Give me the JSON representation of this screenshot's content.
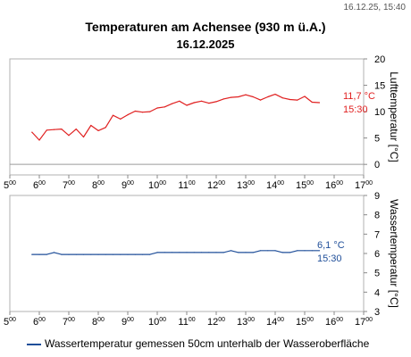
{
  "header": {
    "timestamp": "16.12.25, 15:40",
    "title": "Temperaturen am Achensee (930 m ü.A.)",
    "date": "16.12.2025"
  },
  "legend": {
    "label": "Wassertemperatur gemessen 50cm unterhalb der Wasseroberfläche"
  },
  "chart_data": [
    {
      "type": "line",
      "name": "air",
      "ylabel": "Lufttemperatur [°C]",
      "xlim": [
        5,
        17
      ],
      "ylim": [
        -2,
        20
      ],
      "yticks": [
        0,
        5,
        10,
        15,
        20
      ],
      "xticks": [
        5,
        6,
        7,
        8,
        9,
        10,
        11,
        12,
        13,
        14,
        15,
        16,
        17
      ],
      "xtick_labels": [
        "5",
        "6",
        "7",
        "8",
        "9",
        "10",
        "11",
        "12",
        "13",
        "14",
        "15",
        "16",
        "17"
      ],
      "xtick_suffix": "00",
      "grid": false,
      "zero_line": true,
      "color": "#e02020",
      "series": [
        {
          "x": [
            5.75,
            6.0,
            6.25,
            6.5,
            6.75,
            7.0,
            7.25,
            7.5,
            7.75,
            8.0,
            8.25,
            8.5,
            8.75,
            9.0,
            9.25,
            9.5,
            9.75,
            10.0,
            10.25,
            10.5,
            10.75,
            11.0,
            11.25,
            11.5,
            11.75,
            12.0,
            12.25,
            12.5,
            12.75,
            13.0,
            13.25,
            13.5,
            13.75,
            14.0,
            14.25,
            14.5,
            14.75,
            15.0,
            15.25,
            15.5
          ],
          "values": [
            6.1,
            4.6,
            6.5,
            6.6,
            6.7,
            5.5,
            6.7,
            5.2,
            7.4,
            6.4,
            7.0,
            9.3,
            8.6,
            9.4,
            10.1,
            9.9,
            10.0,
            10.7,
            10.9,
            11.5,
            12.0,
            11.2,
            11.7,
            12.0,
            11.6,
            11.9,
            12.4,
            12.7,
            12.8,
            13.2,
            12.8,
            12.2,
            12.8,
            13.3,
            12.6,
            12.3,
            12.2,
            12.9,
            11.8,
            11.7
          ]
        }
      ],
      "annotation": {
        "value": "11,7 °C",
        "time": "15:30"
      }
    },
    {
      "type": "line",
      "name": "water",
      "ylabel": "Wassertemperatur [°C]",
      "xlim": [
        5,
        17
      ],
      "ylim": [
        3,
        9
      ],
      "yticks": [
        3,
        4,
        5,
        6,
        7,
        8,
        9
      ],
      "xticks": [
        5,
        6,
        7,
        8,
        9,
        10,
        11,
        12,
        13,
        14,
        15,
        16,
        17
      ],
      "xtick_labels": [
        "5",
        "6",
        "7",
        "8",
        "9",
        "10",
        "11",
        "12",
        "13",
        "14",
        "15",
        "16",
        "17"
      ],
      "xtick_suffix": "00",
      "grid": false,
      "color": "#1f4e99",
      "series": [
        {
          "name": "Wassertemperatur gemessen 50cm unterhalb der Wasseroberfläche",
          "x": [
            5.75,
            6.0,
            6.25,
            6.5,
            6.75,
            7.0,
            7.25,
            7.5,
            7.75,
            8.0,
            8.25,
            8.5,
            8.75,
            9.0,
            9.25,
            9.5,
            9.75,
            10.0,
            10.25,
            10.5,
            10.75,
            11.0,
            11.25,
            11.5,
            11.75,
            12.0,
            12.25,
            12.5,
            12.75,
            13.0,
            13.25,
            13.5,
            13.75,
            14.0,
            14.25,
            14.5,
            14.75,
            15.0,
            15.25,
            15.5
          ],
          "values": [
            5.95,
            5.95,
            5.95,
            6.05,
            5.95,
            5.95,
            5.95,
            5.95,
            5.95,
            5.95,
            5.95,
            5.95,
            5.95,
            5.95,
            5.95,
            5.95,
            5.95,
            6.05,
            6.05,
            6.05,
            6.05,
            6.05,
            6.05,
            6.05,
            6.05,
            6.05,
            6.05,
            6.15,
            6.05,
            6.05,
            6.05,
            6.15,
            6.15,
            6.15,
            6.05,
            6.05,
            6.15,
            6.15,
            6.15,
            6.15
          ]
        }
      ],
      "annotation": {
        "value": "6,1 °C",
        "time": "15:30"
      }
    }
  ]
}
